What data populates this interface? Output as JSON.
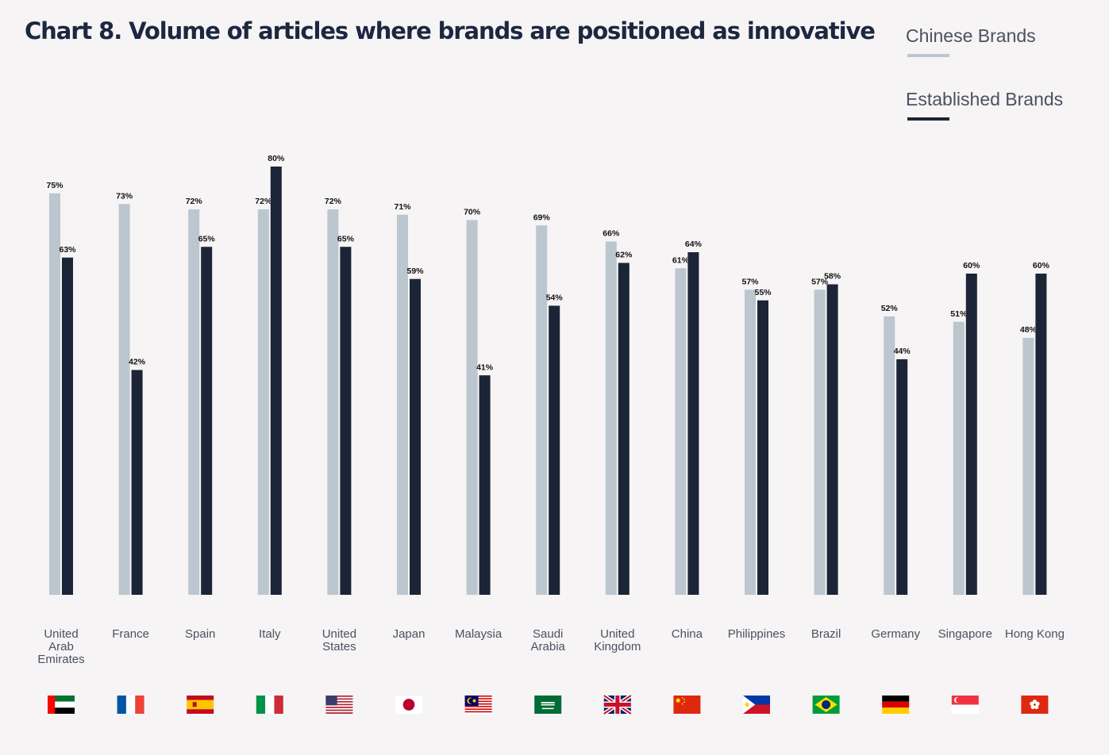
{
  "title": "Chart 8.  Volume of articles where brands are positioned as innovative",
  "colors": {
    "chinese": "#bcc6ce",
    "established": "#1c2537",
    "background": "#f6f4f4"
  },
  "chart_data": {
    "type": "bar",
    "title": "Chart 8.  Volume of articles where brands are positioned as innovative",
    "legend_position": "top-right",
    "grid": false,
    "ylim": [
      0,
      100
    ],
    "categories": [
      "United Arab Emirates",
      "France",
      "Spain",
      "Italy",
      "United States",
      "Japan",
      "Malaysia",
      "Saudi Arabia",
      "United Kingdom",
      "China",
      "Philippines",
      "Brazil",
      "Germany",
      "Singapore",
      "Hong Kong"
    ],
    "category_lines": [
      [
        "United",
        "Arab",
        "Emirates"
      ],
      [
        "France"
      ],
      [
        "Spain"
      ],
      [
        "Italy"
      ],
      [
        "United",
        "States"
      ],
      [
        "Japan"
      ],
      [
        "Malaysia"
      ],
      [
        "Saudi",
        "Arabia"
      ],
      [
        "United",
        "Kingdom"
      ],
      [
        "China"
      ],
      [
        "Philippines"
      ],
      [
        "Brazil"
      ],
      [
        "Germany"
      ],
      [
        "Singapore"
      ],
      [
        "Hong Kong"
      ]
    ],
    "flags": [
      "uae-flag-icon",
      "france-flag-icon",
      "spain-flag-icon",
      "italy-flag-icon",
      "usa-flag-icon",
      "japan-flag-icon",
      "malaysia-flag-icon",
      "saudi-arabia-flag-icon",
      "uk-flag-icon",
      "china-flag-icon",
      "philippines-flag-icon",
      "brazil-flag-icon",
      "germany-flag-icon",
      "singapore-flag-icon",
      "hong-kong-flag-icon"
    ],
    "series": [
      {
        "name": "Chinese Brands",
        "values": [
          75,
          73,
          72,
          72,
          72,
          71,
          70,
          69,
          66,
          61,
          57,
          57,
          52,
          51,
          48
        ]
      },
      {
        "name": "Established Brands",
        "values": [
          63,
          42,
          65,
          80,
          65,
          59,
          41,
          54,
          62,
          64,
          55,
          58,
          44,
          60,
          60
        ]
      }
    ],
    "value_suffix": "%"
  }
}
